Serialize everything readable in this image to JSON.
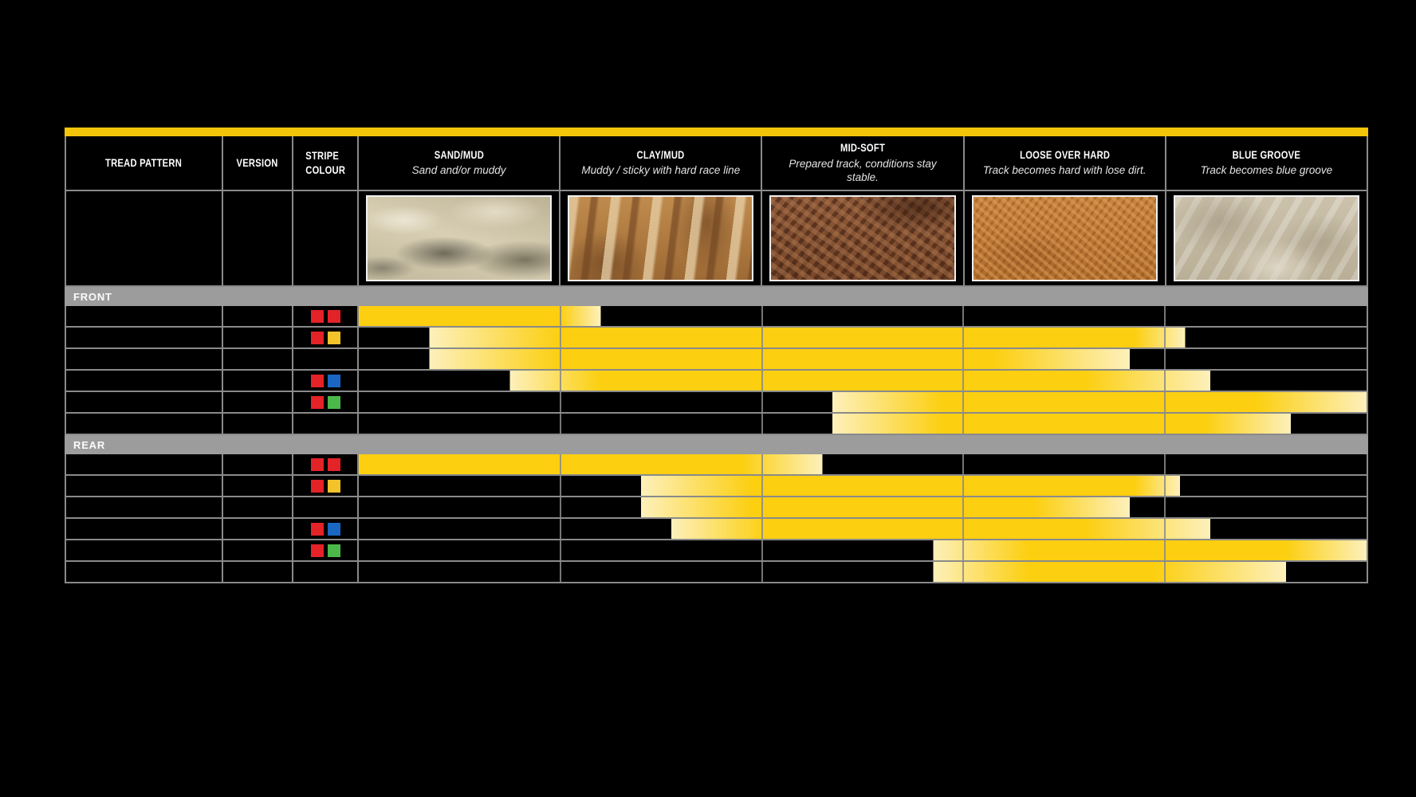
{
  "colors": {
    "accent_yellow": "#f3c50a",
    "bar_yellow": "#fccf10",
    "bar_pale": "#fdf0bb",
    "grid_gray": "#8a8a8a",
    "section_gray": "#9c9c9c",
    "stripe_palette": {
      "red": "#e32328",
      "yellow": "#f2c32a",
      "blue": "#1b66c2",
      "green": "#4db84a"
    }
  },
  "header": {
    "tread_pattern": "TREAD PATTERN",
    "version": "VERSION",
    "stripe_colour": "STRIPE\nCOLOUR"
  },
  "terrains": [
    {
      "title": "SAND/MUD",
      "subtitle": "Sand and/or muddy",
      "photo": "sand",
      "photo_base_color": "#cfc5ab"
    },
    {
      "title": "CLAY/MUD",
      "subtitle": "Muddy / sticky with hard race line",
      "photo": "clay",
      "photo_base_color": "#b5803f"
    },
    {
      "title": "MID-SOFT",
      "subtitle": "Prepared track, conditions stay stable.",
      "photo": "midsoft",
      "photo_base_color": "#7d4c30"
    },
    {
      "title": "LOOSE OVER HARD",
      "subtitle": "Track becomes hard with lose dirt.",
      "photo": "loose",
      "photo_base_color": "#c07a35"
    },
    {
      "title": "BLUE GROOVE",
      "subtitle": "Track becomes blue groove",
      "photo": "groove",
      "photo_base_color": "#c6bba4"
    }
  ],
  "sections": [
    {
      "label": "FRONT",
      "rows": [
        {
          "stripes": [
            "red",
            "red"
          ],
          "bar": {
            "start": 0,
            "solid_start": 0,
            "solid_end": 20,
            "end": 24,
            "fade_to_edge": false
          }
        },
        {
          "stripes": [
            "red",
            "yellow"
          ],
          "bar": {
            "start": 7,
            "solid_start": 20,
            "solid_end": 77,
            "end": 82,
            "fade_to_edge": false
          }
        },
        {
          "stripes": [],
          "bar": {
            "start": 7,
            "solid_start": 20,
            "solid_end": 63,
            "end": 76.5,
            "fade_to_edge": false
          }
        },
        {
          "stripes": [
            "red",
            "blue"
          ],
          "bar": {
            "start": 15,
            "solid_start": 24,
            "solid_end": 72,
            "end": 84.5,
            "fade_to_edge": false
          }
        },
        {
          "stripes": [
            "red",
            "green"
          ],
          "bar": {
            "start": 47,
            "solid_start": 58,
            "solid_end": 89,
            "end": 100,
            "fade_to_edge": true
          }
        },
        {
          "stripes": [],
          "bar": {
            "start": 47,
            "solid_start": 58,
            "solid_end": 84,
            "end": 92.5,
            "fade_to_edge": false
          }
        }
      ]
    },
    {
      "label": "REAR",
      "rows": [
        {
          "stripes": [
            "red",
            "red"
          ],
          "bar": {
            "start": 0,
            "solid_start": 0,
            "solid_end": 38,
            "end": 46,
            "fade_to_edge": false
          }
        },
        {
          "stripes": [
            "red",
            "yellow"
          ],
          "bar": {
            "start": 28,
            "solid_start": 39,
            "solid_end": 77,
            "end": 81.5,
            "fade_to_edge": false
          }
        },
        {
          "stripes": [],
          "bar": {
            "start": 28,
            "solid_start": 39,
            "solid_end": 67,
            "end": 76.5,
            "fade_to_edge": false
          }
        },
        {
          "stripes": [
            "red",
            "blue"
          ],
          "bar": {
            "start": 31,
            "solid_start": 40.5,
            "solid_end": 72,
            "end": 84.5,
            "fade_to_edge": false
          }
        },
        {
          "stripes": [
            "red",
            "green"
          ],
          "bar": {
            "start": 57,
            "solid_start": 66.5,
            "solid_end": 92,
            "end": 100,
            "fade_to_edge": true
          }
        },
        {
          "stripes": [],
          "bar": {
            "start": 57,
            "solid_start": 66.5,
            "solid_end": 79,
            "end": 92,
            "fade_to_edge": false
          }
        }
      ]
    }
  ],
  "chart_data": {
    "type": "table",
    "title": "Tyre tread pattern terrain suitability chart",
    "columns": [
      "SAND/MUD",
      "CLAY/MUD",
      "MID-SOFT",
      "LOOSE OVER HARD",
      "BLUE GROOVE"
    ],
    "column_subtitles": [
      "Sand and/or muddy",
      "Muddy / sticky with hard race line",
      "Prepared track, conditions stay stable.",
      "Track becomes hard with lose dirt.",
      "Track becomes blue groove"
    ],
    "range_units": "0 = left edge of SAND/MUD, 5 = right edge of BLUE GROOVE; each column spans 1 unit",
    "rows": [
      {
        "section": "FRONT",
        "stripe_colour": [
          "red",
          "red"
        ],
        "suitability_range": [
          0.0,
          1.2
        ]
      },
      {
        "section": "FRONT",
        "stripe_colour": [
          "red",
          "yellow"
        ],
        "suitability_range": [
          0.35,
          4.1
        ]
      },
      {
        "section": "FRONT",
        "stripe_colour": [],
        "suitability_range": [
          0.35,
          3.8
        ]
      },
      {
        "section": "FRONT",
        "stripe_colour": [
          "red",
          "blue"
        ],
        "suitability_range": [
          0.75,
          4.2
        ]
      },
      {
        "section": "FRONT",
        "stripe_colour": [
          "red",
          "green"
        ],
        "suitability_range": [
          2.35,
          5.0
        ]
      },
      {
        "section": "FRONT",
        "stripe_colour": [],
        "suitability_range": [
          2.35,
          4.6
        ]
      },
      {
        "section": "REAR",
        "stripe_colour": [
          "red",
          "red"
        ],
        "suitability_range": [
          0.0,
          2.3
        ]
      },
      {
        "section": "REAR",
        "stripe_colour": [
          "red",
          "yellow"
        ],
        "suitability_range": [
          1.4,
          4.1
        ]
      },
      {
        "section": "REAR",
        "stripe_colour": [],
        "suitability_range": [
          1.4,
          3.8
        ]
      },
      {
        "section": "REAR",
        "stripe_colour": [
          "red",
          "blue"
        ],
        "suitability_range": [
          1.55,
          4.2
        ]
      },
      {
        "section": "REAR",
        "stripe_colour": [
          "red",
          "green"
        ],
        "suitability_range": [
          2.85,
          5.0
        ]
      },
      {
        "section": "REAR",
        "stripe_colour": [],
        "suitability_range": [
          2.85,
          4.6
        ]
      }
    ]
  }
}
